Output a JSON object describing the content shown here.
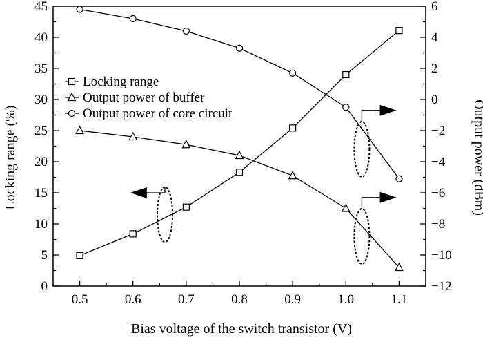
{
  "chart_data": {
    "type": "line",
    "title": "",
    "xlabel": "Bias voltage of the switch transistor (V)",
    "ylabel_left": "Locking range (%)",
    "ylabel_right": "Output power (dBm)",
    "x": [
      0.5,
      0.6,
      0.7,
      0.8,
      0.9,
      1.0,
      1.1
    ],
    "xlim": [
      0.45,
      1.15
    ],
    "xticks": [
      "0.5",
      "0.6",
      "0.7",
      "0.8",
      "0.9",
      "1.0",
      "1.1"
    ],
    "ylim_left": [
      0,
      45
    ],
    "yticks_left": [
      "0",
      "5",
      "10",
      "15",
      "20",
      "25",
      "30",
      "35",
      "40",
      "45"
    ],
    "ylim_right": [
      -12,
      6
    ],
    "yticks_right": [
      "-12",
      "-10",
      "-8",
      "-6",
      "-4",
      "-2",
      "0",
      "2",
      "4",
      "6"
    ],
    "grid": false,
    "legend_position": "center-left",
    "series": [
      {
        "name": "Locking range",
        "axis": "left",
        "marker": "square",
        "values": [
          4.9,
          8.4,
          12.7,
          18.3,
          25.4,
          34.0,
          41.1
        ]
      },
      {
        "name": "Output power of buffer",
        "axis": "right",
        "marker": "triangle",
        "values": [
          -2.0,
          -2.4,
          -2.9,
          -3.6,
          -4.9,
          -7.0,
          -10.8
        ]
      },
      {
        "name": "Output power of core circuit",
        "axis": "right",
        "marker": "circle",
        "values": [
          5.8,
          5.2,
          4.4,
          3.3,
          1.7,
          -0.5,
          -5.1
        ]
      }
    ]
  }
}
